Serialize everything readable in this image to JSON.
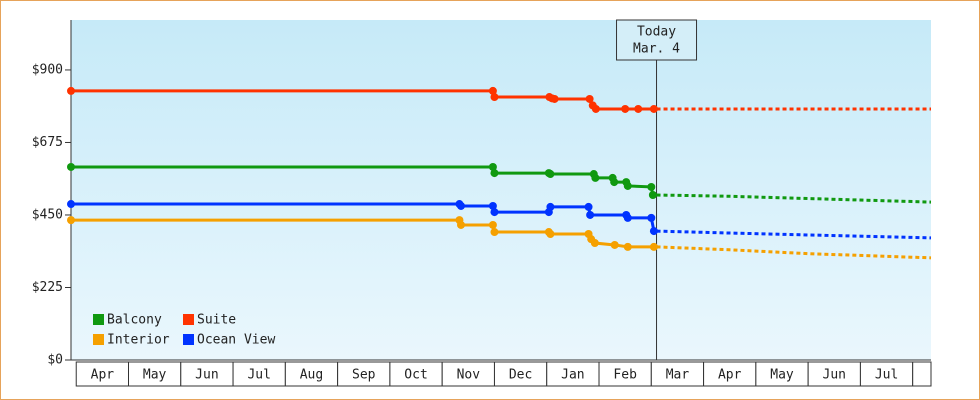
{
  "chart_data": {
    "type": "line",
    "ylim": [
      0,
      1055
    ],
    "yticks": [
      {
        "value": 0,
        "label": "$0"
      },
      {
        "value": 225,
        "label": "$225"
      },
      {
        "value": 450,
        "label": "$450"
      },
      {
        "value": 675,
        "label": "$675"
      },
      {
        "value": 900,
        "label": "$900"
      }
    ],
    "xlim": [
      -0.1,
      16.35
    ],
    "xticks": [
      {
        "value": 0.5,
        "label": "Apr"
      },
      {
        "value": 1.5,
        "label": "May"
      },
      {
        "value": 2.5,
        "label": "Jun"
      },
      {
        "value": 3.5,
        "label": "Jul"
      },
      {
        "value": 4.5,
        "label": "Aug"
      },
      {
        "value": 5.5,
        "label": "Sep"
      },
      {
        "value": 6.5,
        "label": "Oct"
      },
      {
        "value": 7.5,
        "label": "Nov"
      },
      {
        "value": 8.5,
        "label": "Dec"
      },
      {
        "value": 9.5,
        "label": "Jan"
      },
      {
        "value": 10.5,
        "label": "Feb"
      },
      {
        "value": 11.5,
        "label": "Mar"
      },
      {
        "value": 12.5,
        "label": "Apr"
      },
      {
        "value": 13.5,
        "label": "May"
      },
      {
        "value": 14.5,
        "label": "Jun"
      },
      {
        "value": 15.5,
        "label": "Jul"
      }
    ],
    "annotation": {
      "lines": [
        "Today",
        "Mar. 4"
      ],
      "x": 11.1
    },
    "legend": "lower-left",
    "series": [
      {
        "name": "Balcony",
        "color": "#109910",
        "x": [
          -0.1,
          7.97,
          8.0,
          9.04,
          9.07,
          9.9,
          9.93,
          10.26,
          10.29,
          10.52,
          10.55,
          11.0,
          11.03
        ],
        "values": [
          599,
          599,
          580,
          580,
          577,
          577,
          565,
          565,
          552,
          552,
          540,
          537,
          512
        ],
        "forecast": {
          "x": [
            11.1,
            12.5,
            14,
            16.35
          ],
          "values": [
            512,
            508,
            501,
            490
          ]
        }
      },
      {
        "name": "Suite",
        "color": "#ff3300",
        "x": [
          -0.1,
          7.97,
          8.0,
          9.05,
          9.1,
          9.15,
          9.82,
          9.88,
          9.94,
          10.5,
          10.75,
          11.05
        ],
        "values": [
          835,
          835,
          816,
          816,
          812,
          810,
          810,
          790,
          779,
          779,
          779,
          779
        ],
        "forecast": {
          "x": [
            11.1,
            16.35
          ],
          "values": [
            779,
            779
          ]
        }
      },
      {
        "name": "Interior",
        "color": "#f5a000",
        "x": [
          -0.1,
          7.33,
          7.36,
          7.97,
          8.0,
          9.04,
          9.07,
          9.8,
          9.85,
          9.92,
          10.3,
          10.55,
          11.05
        ],
        "values": [
          434,
          434,
          419,
          419,
          397,
          397,
          391,
          391,
          375,
          363,
          357,
          351,
          351
        ],
        "forecast": {
          "x": [
            11.1,
            12.5,
            14,
            16.35
          ],
          "values": [
            351,
            342,
            330,
            317
          ]
        }
      },
      {
        "name": "Ocean View",
        "color": "#0033ff",
        "x": [
          -0.1,
          7.33,
          7.36,
          7.97,
          8.0,
          9.04,
          9.07,
          9.8,
          9.83,
          10.52,
          10.55,
          11.0,
          11.05
        ],
        "values": [
          484,
          484,
          478,
          478,
          459,
          459,
          475,
          475,
          450,
          450,
          441,
          441,
          400
        ],
        "forecast": {
          "x": [
            11.1,
            12.5,
            14,
            16.35
          ],
          "values": [
            400,
            394,
            388,
            379
          ]
        }
      }
    ]
  }
}
